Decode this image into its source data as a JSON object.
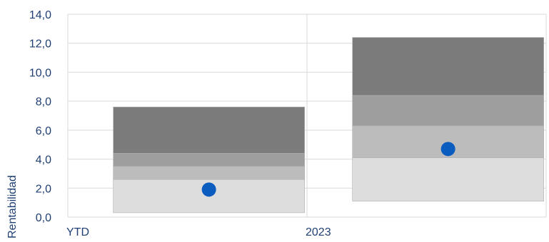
{
  "chart_data": {
    "type": "bar",
    "subtype": "stacked-range-with-marker",
    "categories": [
      "YTD",
      "2023"
    ],
    "ylabel": "Rentabilidad",
    "ylim": [
      0,
      14
    ],
    "yticks": [
      "0,0",
      "2,0",
      "4,0",
      "6,0",
      "8,0",
      "10,0",
      "12,0",
      "14,0"
    ],
    "grid": true,
    "legend": "none",
    "bands": [
      {
        "color": "#dddddd",
        "values": [
          [
            0.3,
            2.6
          ],
          [
            1.1,
            4.1
          ]
        ]
      },
      {
        "color": "#bcbcbc",
        "values": [
          [
            2.6,
            3.5
          ],
          [
            4.1,
            6.3
          ]
        ]
      },
      {
        "color": "#9e9e9e",
        "values": [
          [
            3.5,
            4.4
          ],
          [
            6.3,
            8.4
          ]
        ]
      },
      {
        "color": "#7b7b7b",
        "values": [
          [
            4.4,
            7.6
          ],
          [
            8.4,
            12.4
          ]
        ]
      }
    ],
    "markers": {
      "color": "#0a5cbf",
      "values": [
        1.9,
        4.7
      ]
    }
  }
}
